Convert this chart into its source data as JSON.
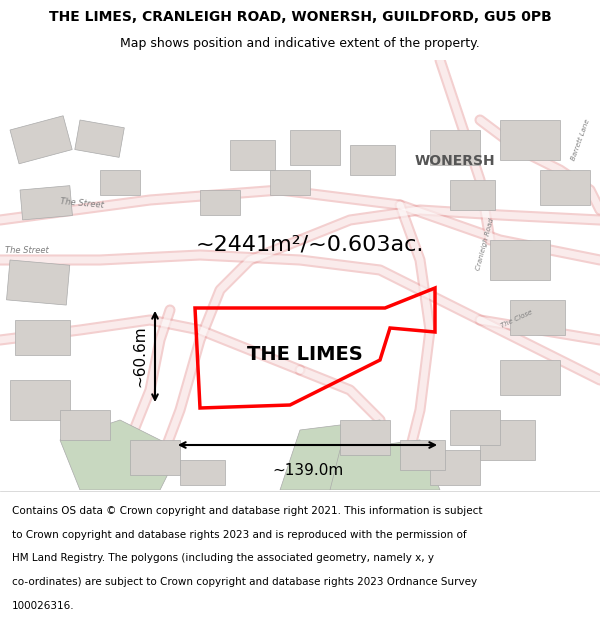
{
  "title_line1": "THE LIMES, CRANLEIGH ROAD, WONERSH, GUILDFORD, GU5 0PB",
  "title_line2": "Map shows position and indicative extent of the property.",
  "property_label": "THE LIMES",
  "area_text": "~2441m²/~0.603ac.",
  "width_text": "~139.0m",
  "height_text": "~60.6m",
  "copyright_lines": [
    "Contains OS data © Crown copyright and database right 2021. This information is subject",
    "to Crown copyright and database rights 2023 and is reproduced with the permission of",
    "HM Land Registry. The polygons (including the associated geometry, namely x, y",
    "co-ordinates) are subject to Crown copyright and database rights 2023 Ordnance Survey",
    "100026316."
  ],
  "map_bg_color": "#f5f0eb",
  "road_color": "#e8a0a0",
  "building_color": "#d4d0cc",
  "green_color": "#c8d8c0",
  "property_outline_color": "#ff0000",
  "title_fontsize": 10,
  "subtitle_fontsize": 9,
  "label_fontsize": 14,
  "area_fontsize": 16,
  "measure_fontsize": 11,
  "copyright_fontsize": 7.5,
  "fig_width": 6.0,
  "fig_height": 6.25
}
